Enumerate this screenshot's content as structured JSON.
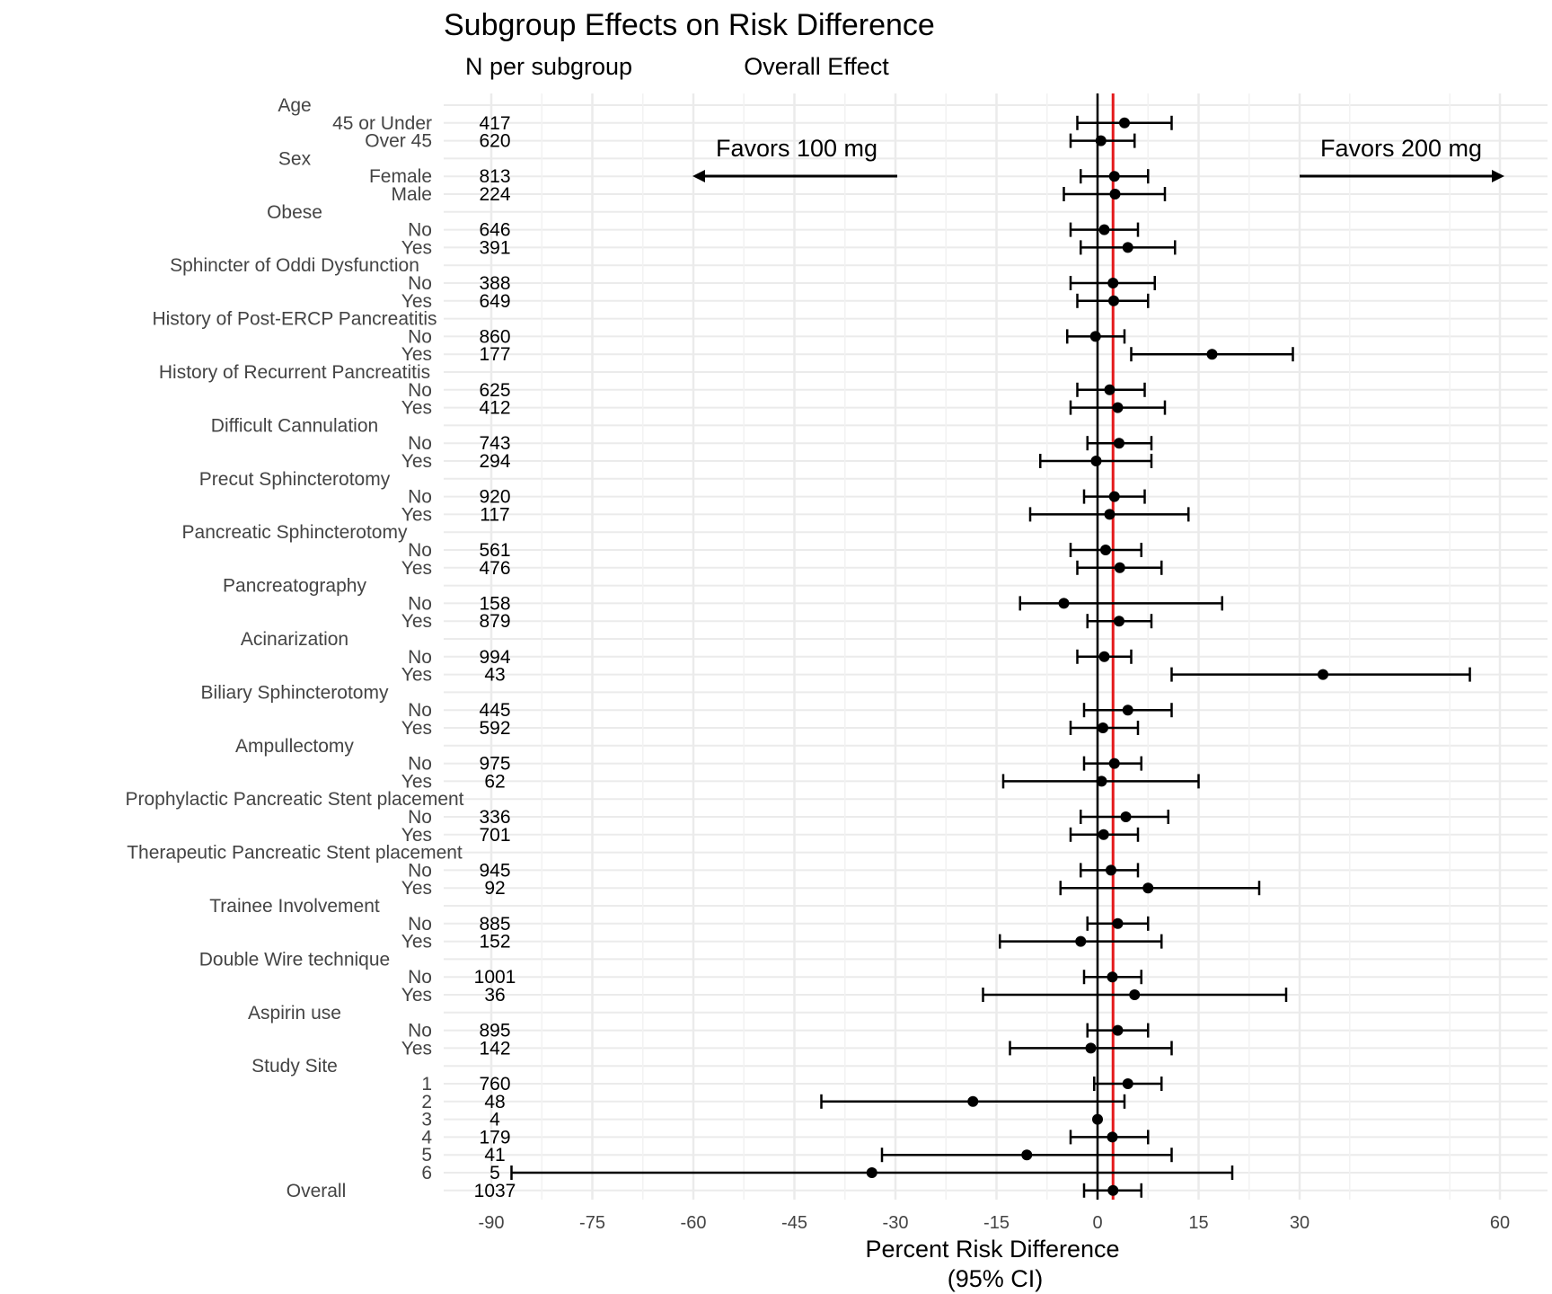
{
  "chart_data": {
    "type": "forest",
    "title": "Subgroup Effects on Risk Difference",
    "column_headers": {
      "n": "N per subgroup",
      "effect": "Overall Effect"
    },
    "xlabel_line1": "Percent Risk Difference",
    "xlabel_line2": "(95% CI)",
    "x_ticks": [
      "-90",
      "-75",
      "-60",
      "-45",
      "-30",
      "-15",
      "0",
      "15",
      "30",
      "60"
    ],
    "x_axis_note": "piecewise scale: -90 to 30 linear, 30 to 60 compressed",
    "xlim": [
      -97,
      67
    ],
    "grid": true,
    "reference_lines": {
      "zero": 0,
      "overall": 2.3,
      "overall_color": "#e41a1c"
    },
    "annotations": {
      "left": "Favors 100 mg",
      "right": "Favors 200 mg"
    },
    "groups": [
      {
        "label": "Age",
        "rows": [
          {
            "label": "45 or Under",
            "n": "417",
            "est": 4.0,
            "lo": -3.0,
            "hi": 11.0
          },
          {
            "label": "Over 45",
            "n": "620",
            "est": 0.5,
            "lo": -4.0,
            "hi": 5.5
          }
        ]
      },
      {
        "label": "Sex",
        "rows": [
          {
            "label": "Female",
            "n": "813",
            "est": 2.5,
            "lo": -2.5,
            "hi": 7.5
          },
          {
            "label": "Male",
            "n": "224",
            "est": 2.6,
            "lo": -5.0,
            "hi": 10.0
          }
        ]
      },
      {
        "label": "Obese",
        "rows": [
          {
            "label": "No",
            "n": "646",
            "est": 1.0,
            "lo": -4.0,
            "hi": 6.0
          },
          {
            "label": "Yes",
            "n": "391",
            "est": 4.5,
            "lo": -2.5,
            "hi": 11.5
          }
        ]
      },
      {
        "label": "Sphincter of Oddi Dysfunction",
        "rows": [
          {
            "label": "No",
            "n": "388",
            "est": 2.3,
            "lo": -4.0,
            "hi": 8.5
          },
          {
            "label": "Yes",
            "n": "649",
            "est": 2.4,
            "lo": -3.0,
            "hi": 7.5
          }
        ]
      },
      {
        "label": "History of Post-ERCP Pancreatitis",
        "rows": [
          {
            "label": "No",
            "n": "860",
            "est": -0.3,
            "lo": -4.5,
            "hi": 4.0
          },
          {
            "label": "Yes",
            "n": "177",
            "est": 17.0,
            "lo": 5.0,
            "hi": 29.0
          }
        ]
      },
      {
        "label": "History of Recurrent Pancreatitis",
        "rows": [
          {
            "label": "No",
            "n": "625",
            "est": 1.8,
            "lo": -3.0,
            "hi": 7.0
          },
          {
            "label": "Yes",
            "n": "412",
            "est": 3.0,
            "lo": -4.0,
            "hi": 10.0
          }
        ]
      },
      {
        "label": "Difficult Cannulation",
        "rows": [
          {
            "label": "No",
            "n": "743",
            "est": 3.2,
            "lo": -1.5,
            "hi": 8.0
          },
          {
            "label": "Yes",
            "n": "294",
            "est": -0.2,
            "lo": -8.5,
            "hi": 8.0
          }
        ]
      },
      {
        "label": "Precut Sphincterotomy",
        "rows": [
          {
            "label": "No",
            "n": "920",
            "est": 2.5,
            "lo": -2.0,
            "hi": 7.0
          },
          {
            "label": "Yes",
            "n": "117",
            "est": 1.8,
            "lo": -10.0,
            "hi": 13.5
          }
        ]
      },
      {
        "label": "Pancreatic Sphincterotomy",
        "rows": [
          {
            "label": "No",
            "n": "561",
            "est": 1.2,
            "lo": -4.0,
            "hi": 6.5
          },
          {
            "label": "Yes",
            "n": "476",
            "est": 3.3,
            "lo": -3.0,
            "hi": 9.5
          }
        ]
      },
      {
        "label": "Pancreatography",
        "rows": [
          {
            "label": "No",
            "n": "158",
            "est": -5.0,
            "lo": -11.5,
            "hi": 18.5
          },
          {
            "label": "Yes",
            "n": "879",
            "est": 3.2,
            "lo": -1.5,
            "hi": 8.0
          }
        ]
      },
      {
        "label": "Acinarization",
        "rows": [
          {
            "label": "No",
            "n": "994",
            "est": 1.0,
            "lo": -3.0,
            "hi": 5.0
          },
          {
            "label": "Yes",
            "n": "43",
            "est": 33.5,
            "lo": 11.0,
            "hi": 55.5
          }
        ]
      },
      {
        "label": "Biliary Sphincterotomy",
        "rows": [
          {
            "label": "No",
            "n": "445",
            "est": 4.5,
            "lo": -2.0,
            "hi": 11.0
          },
          {
            "label": "Yes",
            "n": "592",
            "est": 0.8,
            "lo": -4.0,
            "hi": 6.0
          }
        ]
      },
      {
        "label": "Ampullectomy",
        "rows": [
          {
            "label": "No",
            "n": "975",
            "est": 2.5,
            "lo": -2.0,
            "hi": 6.5
          },
          {
            "label": "Yes",
            "n": "62",
            "est": 0.6,
            "lo": -14.0,
            "hi": 15.0
          }
        ]
      },
      {
        "label": "Prophylactic Pancreatic Stent placement",
        "rows": [
          {
            "label": "No",
            "n": "336",
            "est": 4.2,
            "lo": -2.5,
            "hi": 10.5
          },
          {
            "label": "Yes",
            "n": "701",
            "est": 0.9,
            "lo": -4.0,
            "hi": 6.0
          }
        ]
      },
      {
        "label": "Therapeutic Pancreatic Stent placement",
        "rows": [
          {
            "label": "No",
            "n": "945",
            "est": 2.0,
            "lo": -2.5,
            "hi": 6.0
          },
          {
            "label": "Yes",
            "n": "92",
            "est": 7.5,
            "lo": -5.5,
            "hi": 24.0
          }
        ]
      },
      {
        "label": "Trainee Involvement",
        "rows": [
          {
            "label": "No",
            "n": "885",
            "est": 3.0,
            "lo": -1.5,
            "hi": 7.5
          },
          {
            "label": "Yes",
            "n": "152",
            "est": -2.5,
            "lo": -14.5,
            "hi": 9.5
          }
        ]
      },
      {
        "label": "Double Wire technique",
        "rows": [
          {
            "label": "No",
            "n": "1001",
            "est": 2.2,
            "lo": -2.0,
            "hi": 6.5
          },
          {
            "label": "Yes",
            "n": "36",
            "est": 5.5,
            "lo": -17.0,
            "hi": 28.0
          }
        ]
      },
      {
        "label": "Aspirin use",
        "rows": [
          {
            "label": "No",
            "n": "895",
            "est": 3.0,
            "lo": -1.5,
            "hi": 7.5
          },
          {
            "label": "Yes",
            "n": "142",
            "est": -1.0,
            "lo": -13.0,
            "hi": 11.0
          }
        ]
      },
      {
        "label": "Study Site",
        "rows": [
          {
            "label": "1",
            "n": "760",
            "est": 4.5,
            "lo": -0.5,
            "hi": 9.5
          },
          {
            "label": "2",
            "n": "48",
            "est": -18.5,
            "lo": -41.0,
            "hi": 4.0
          },
          {
            "label": "3",
            "n": "4",
            "est": 0.0,
            "lo": 0.0,
            "hi": 0.0
          },
          {
            "label": "4",
            "n": "179",
            "est": 2.2,
            "lo": -4.0,
            "hi": 7.5
          },
          {
            "label": "5",
            "n": "41",
            "est": -10.5,
            "lo": -32.0,
            "hi": 11.0
          },
          {
            "label": "6",
            "n": "5",
            "est": -33.5,
            "lo": -87.0,
            "hi": 20.0
          }
        ]
      },
      {
        "label": "Overall",
        "overall": true,
        "n": "1037",
        "est": 2.3,
        "lo": -2.0,
        "hi": 6.5
      }
    ]
  }
}
